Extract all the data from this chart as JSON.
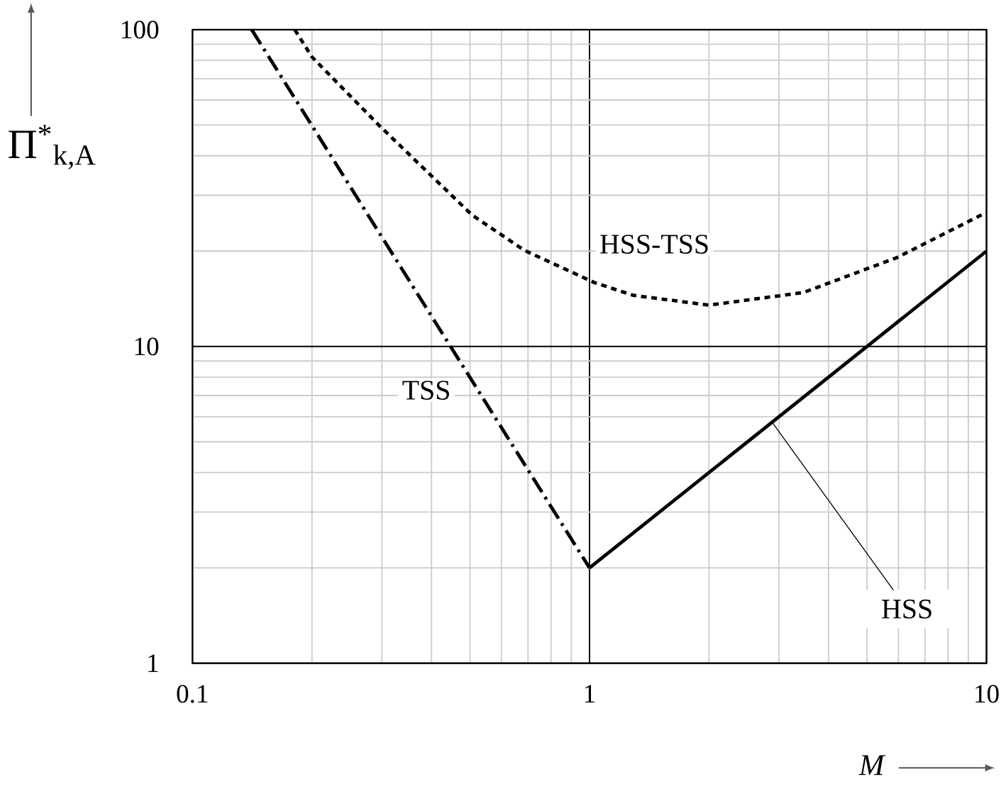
{
  "chart_data": {
    "type": "line",
    "xlabel": "M",
    "ylabel": "Π$^{*}$$_{k,A}$",
    "log": "xy",
    "grid": true,
    "marker": "none",
    "xlim": [
      0.1,
      10
    ],
    "ylim": [
      1,
      100
    ],
    "xticks": [
      0.1,
      1,
      10
    ],
    "yticks": [
      1,
      10,
      100
    ],
    "series": [
      {
        "name": "TSS",
        "color": "#000000",
        "line_style": "dashdot",
        "x": [
          0.141,
          1
        ],
        "values": [
          100,
          2
        ]
      },
      {
        "name": "HSS",
        "color": "#000000",
        "line_style": "solid",
        "x": [
          1,
          10
        ],
        "values": [
          2,
          20
        ]
      },
      {
        "name": "HSS-TSS",
        "color": "#000000",
        "line_style": "dotted",
        "x": [
          0.181,
          0.2,
          0.296,
          0.506,
          0.686,
          1.03,
          1.29,
          2.0,
          3.46,
          5.96,
          10
        ],
        "values": [
          100,
          82,
          49.7,
          26,
          20.1,
          15.9,
          14.5,
          13.5,
          14.8,
          19.1,
          26.5
        ]
      }
    ]
  }
}
